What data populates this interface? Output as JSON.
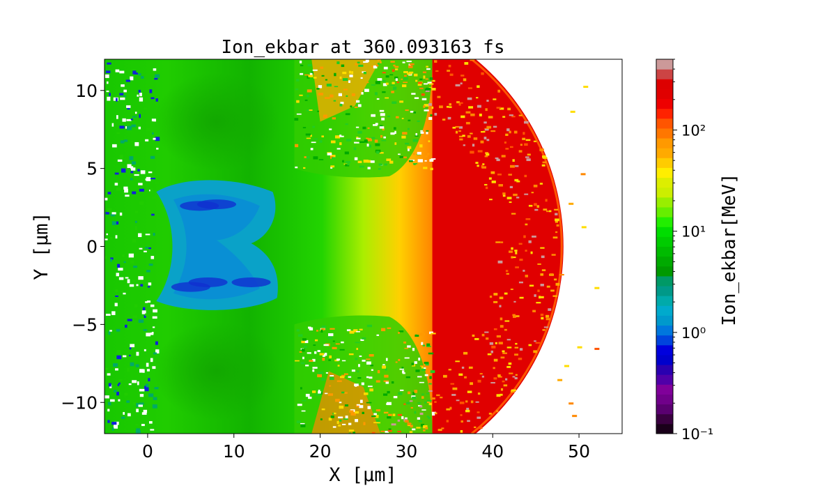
{
  "chart_data": {
    "type": "heatmap",
    "title": "Ion_ekbar at 360.093163 fs",
    "xlabel": "X  [μm]",
    "ylabel": "Y  [μm]",
    "xlim": [
      -5,
      55
    ],
    "ylim": [
      -12,
      12
    ],
    "x_ticks": [
      0,
      10,
      20,
      30,
      40,
      50
    ],
    "x_tick_labels": [
      "0",
      "10",
      "20",
      "30",
      "40",
      "50"
    ],
    "y_ticks": [
      -10,
      -5,
      0,
      5,
      10
    ],
    "y_tick_labels": [
      "−10",
      "−5",
      "0",
      "5",
      "10"
    ],
    "colorbar": {
      "label": "Ion_ekbar[MeV]",
      "scale": "log",
      "range": [
        0.1,
        500
      ],
      "ticks": [
        0.1,
        1,
        10,
        100
      ],
      "tick_labels": [
        "10⁻¹",
        "10⁰",
        "10¹",
        "10²"
      ],
      "colormap": "nipy_spectral"
    },
    "regions": [
      {
        "x_range": [
          -5,
          3
        ],
        "level_MeV": 8,
        "note": "green edge, noisy"
      },
      {
        "x_range": [
          3,
          15
        ],
        "y_range": [
          -4,
          4
        ],
        "level_MeV": 1.2,
        "note": "cyan-blue core with deep blue filaments"
      },
      {
        "x_range": [
          15,
          21
        ],
        "level_MeV": 9
      },
      {
        "x_range": [
          21,
          27
        ],
        "level_MeV": 30
      },
      {
        "x_range": [
          27,
          33
        ],
        "level_MeV": 80
      },
      {
        "x_range": [
          33,
          48
        ],
        "level_MeV": 200,
        "note": "red shell, front near x = 48"
      }
    ],
    "grid": false,
    "legend": "colorbar-right"
  }
}
